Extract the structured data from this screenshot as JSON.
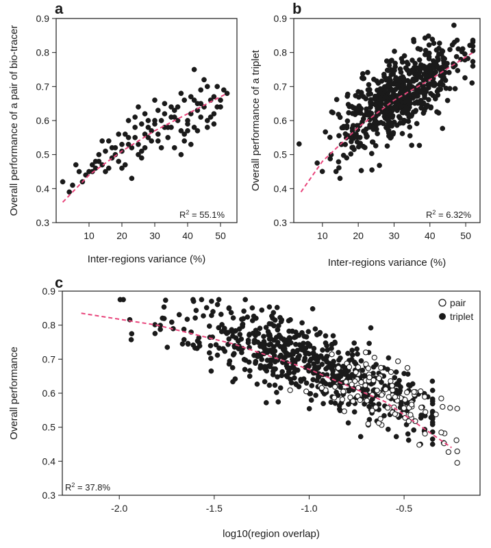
{
  "chart_data": [
    {
      "panel": "a",
      "type": "scatter",
      "xlabel": "Inter-regions variance (%)",
      "ylabel": "Overall performance of a pair of bio-tracer",
      "xlim": [
        0,
        55
      ],
      "ylim": [
        0.3,
        0.9
      ],
      "x_ticks": [
        10,
        20,
        30,
        40,
        50
      ],
      "y_ticks": [
        0.3,
        0.4,
        0.5,
        0.6,
        0.7,
        0.8,
        0.9
      ],
      "annotation": {
        "prefix": "R",
        "sup": "2",
        "suffix": " = 55.1%"
      },
      "fit": {
        "color": "#e8437a",
        "x": [
          2,
          10,
          20,
          30,
          40,
          52
        ],
        "y": [
          0.36,
          0.44,
          0.51,
          0.57,
          0.62,
          0.68
        ]
      },
      "series": [
        {
          "points": [
            [
              2,
              0.42
            ],
            [
              4,
              0.39
            ],
            [
              5,
              0.41
            ],
            [
              6,
              0.47
            ],
            [
              7,
              0.45
            ],
            [
              8,
              0.42
            ],
            [
              10,
              0.45
            ],
            [
              11,
              0.47
            ],
            [
              12,
              0.46
            ],
            [
              13,
              0.48
            ],
            [
              14,
              0.47
            ],
            [
              15,
              0.45
            ],
            [
              16,
              0.46
            ],
            [
              17,
              0.49
            ],
            [
              18,
              0.5
            ],
            [
              19,
              0.48
            ],
            [
              20,
              0.51
            ],
            [
              21,
              0.47
            ],
            [
              22,
              0.53
            ],
            [
              23,
              0.52
            ],
            [
              24,
              0.55
            ],
            [
              25,
              0.53
            ],
            [
              26,
              0.51
            ],
            [
              27,
              0.56
            ],
            [
              28,
              0.58
            ],
            [
              29,
              0.54
            ],
            [
              30,
              0.59
            ],
            [
              31,
              0.56
            ],
            [
              32,
              0.6
            ],
            [
              33,
              0.62
            ],
            [
              34,
              0.58
            ],
            [
              35,
              0.61
            ],
            [
              36,
              0.63
            ],
            [
              37,
              0.6
            ],
            [
              38,
              0.57
            ],
            [
              39,
              0.54
            ],
            [
              40,
              0.59
            ],
            [
              41,
              0.62
            ],
            [
              42,
              0.66
            ],
            [
              43,
              0.63
            ],
            [
              44,
              0.61
            ],
            [
              45,
              0.64
            ],
            [
              46,
              0.6
            ],
            [
              47,
              0.66
            ],
            [
              48,
              0.67
            ],
            [
              49,
              0.64
            ],
            [
              50,
              0.66
            ],
            [
              51,
              0.69
            ],
            [
              52,
              0.68
            ],
            [
              45,
              0.72
            ],
            [
              42,
              0.75
            ],
            [
              48,
              0.62
            ],
            [
              36,
              0.52
            ],
            [
              38,
              0.5
            ],
            [
              23,
              0.43
            ],
            [
              25,
              0.64
            ],
            [
              28,
              0.55
            ],
            [
              33,
              0.65
            ],
            [
              30,
              0.6
            ],
            [
              41,
              0.67
            ],
            [
              46,
              0.58
            ],
            [
              26,
              0.49
            ],
            [
              20,
              0.46
            ],
            [
              17,
              0.52
            ],
            [
              14,
              0.54
            ],
            [
              19,
              0.56
            ],
            [
              22,
              0.6
            ],
            [
              27,
              0.62
            ],
            [
              31,
              0.63
            ],
            [
              34,
              0.55
            ],
            [
              37,
              0.64
            ],
            [
              40,
              0.6
            ],
            [
              43,
              0.57
            ],
            [
              44,
              0.69
            ],
            [
              47,
              0.61
            ],
            [
              49,
              0.7
            ],
            [
              39,
              0.66
            ],
            [
              35,
              0.58
            ],
            [
              32,
              0.52
            ],
            [
              29,
              0.57
            ],
            [
              24,
              0.58
            ],
            [
              21,
              0.56
            ],
            [
              18,
              0.52
            ],
            [
              15,
              0.51
            ],
            [
              12,
              0.48
            ],
            [
              9,
              0.44
            ],
            [
              16,
              0.54
            ],
            [
              13,
              0.5
            ],
            [
              11,
              0.45
            ],
            [
              26,
              0.59
            ],
            [
              36,
              0.61
            ],
            [
              42,
              0.58
            ],
            [
              38,
              0.68
            ],
            [
              44,
              0.65
            ],
            [
              46,
              0.7
            ],
            [
              48,
              0.59
            ],
            [
              50,
              0.64
            ],
            [
              27,
              0.52
            ],
            [
              33,
              0.58
            ],
            [
              39,
              0.56
            ],
            [
              41,
              0.53
            ],
            [
              43,
              0.65
            ],
            [
              31,
              0.54
            ],
            [
              28,
              0.6
            ],
            [
              25,
              0.5
            ],
            [
              22,
              0.55
            ],
            [
              20,
              0.53
            ],
            [
              24,
              0.61
            ],
            [
              30,
              0.66
            ],
            [
              35,
              0.64
            ],
            [
              40,
              0.57
            ]
          ]
        }
      ]
    },
    {
      "panel": "b",
      "type": "scatter",
      "xlabel": "Inter-regions variance (%)",
      "ylabel": "Overall performance of a triplet",
      "xlim": [
        2,
        54
      ],
      "ylim": [
        0.3,
        0.9
      ],
      "x_ticks": [
        10,
        20,
        30,
        40,
        50
      ],
      "y_ticks": [
        0.3,
        0.4,
        0.5,
        0.6,
        0.7,
        0.8,
        0.9
      ],
      "annotation": {
        "prefix": "R",
        "sup": "2",
        "suffix": " = 6.32%"
      },
      "fit": {
        "color": "#e8437a",
        "x": [
          4,
          10,
          20,
          30,
          40,
          52
        ],
        "y": [
          0.39,
          0.48,
          0.58,
          0.66,
          0.72,
          0.8
        ]
      },
      "generated_points": {
        "n": 620,
        "x_center": 31,
        "x_spread": 8.5,
        "slope": 0.0065,
        "intercept": 0.47,
        "noise": 0.055
      }
    },
    {
      "panel": "c",
      "type": "scatter",
      "xlabel": "log10(region overlap)",
      "ylabel": "Overall performance",
      "xlim": [
        -2.3,
        -0.1
      ],
      "ylim": [
        0.3,
        0.9
      ],
      "x_ticks": [
        -2.0,
        -1.5,
        -1.0,
        -0.5
      ],
      "x_tick_labels": [
        "-2.0",
        "-1.5",
        "-1.0",
        "-0.5"
      ],
      "y_ticks": [
        0.3,
        0.4,
        0.5,
        0.6,
        0.7,
        0.8,
        0.9
      ],
      "annotation": {
        "prefix": "R",
        "sup": "2",
        "suffix": " = 37.8%"
      },
      "legend": {
        "position": "top-right",
        "items": [
          {
            "label": "pair",
            "marker": "open-circle"
          },
          {
            "label": "triplet",
            "marker": "filled-circle"
          }
        ]
      },
      "fit": {
        "color": "#e8437a",
        "x": [
          -2.2,
          -1.8,
          -1.4,
          -1.0,
          -0.6,
          -0.25
        ],
        "y": [
          0.835,
          0.8,
          0.745,
          0.67,
          0.575,
          0.44
        ]
      },
      "series": [
        {
          "name": "pair",
          "generated_points": {
            "n": 110,
            "x_center": -0.6,
            "x_spread": 0.2,
            "noise": 0.05
          }
        },
        {
          "name": "triplet",
          "generated_points": {
            "n": 620,
            "x_center": -1.0,
            "x_spread": 0.35,
            "noise": 0.055
          }
        }
      ]
    }
  ]
}
